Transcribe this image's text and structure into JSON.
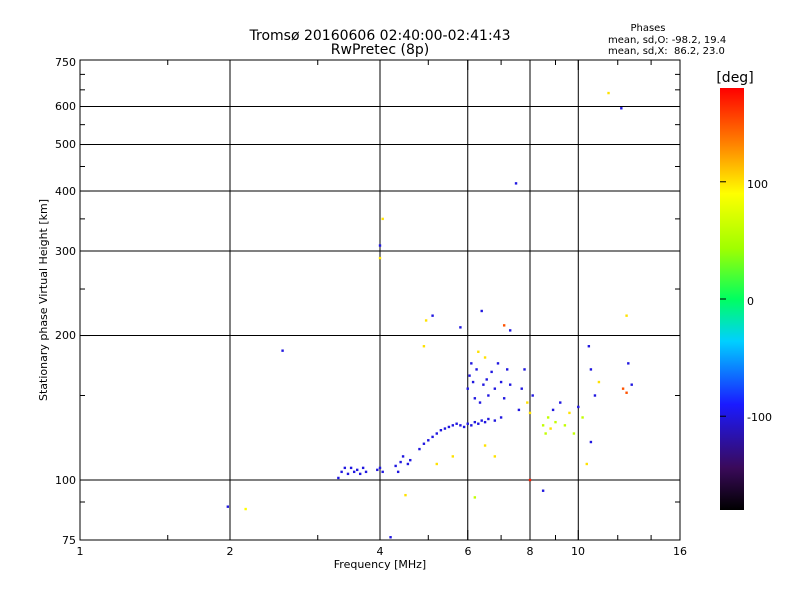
{
  "chart_data": {
    "type": "scatter",
    "title": "Tromsø 20160606 02:40:00-02:41:43",
    "subtitle": "RwPretec (8p)",
    "xlabel": "Frequency [MHz]",
    "ylabel": "Stationary phase Virtual Height [km]",
    "x_scale": "log",
    "y_scale": "log",
    "xlim": [
      1,
      16
    ],
    "ylim": [
      75,
      750
    ],
    "x_ticks": [
      "1",
      "2",
      "4",
      "6",
      "8",
      "10",
      "16"
    ],
    "y_ticks": [
      "75",
      "100",
      "200",
      "300",
      "400",
      "500",
      "600",
      "750"
    ],
    "grid": true,
    "stats": {
      "heading": "Phases",
      "line_o": "mean, sd,O: -98.2, 19.4",
      "line_x": "mean, sd,X:  86.2, 23.0"
    },
    "colorbar": {
      "label": "[deg]",
      "ticks": [
        "100",
        "0",
        "-100"
      ],
      "tick_values": [
        100,
        0,
        -100
      ],
      "range": [
        -180,
        180
      ],
      "colors": [
        "#000000",
        "#3a0a5a",
        "#1a1aff",
        "#00d0ff",
        "#00ff60",
        "#a0ff00",
        "#ffff00",
        "#ff8000",
        "#ff0000"
      ]
    },
    "points": [
      {
        "x": 1.98,
        "y": 88,
        "phase": -100
      },
      {
        "x": 2.15,
        "y": 87,
        "phase": 90
      },
      {
        "x": 2.55,
        "y": 186,
        "phase": -100
      },
      {
        "x": 3.3,
        "y": 101,
        "phase": -100
      },
      {
        "x": 3.35,
        "y": 104,
        "phase": -100
      },
      {
        "x": 3.4,
        "y": 106,
        "phase": -100
      },
      {
        "x": 3.45,
        "y": 103,
        "phase": -100
      },
      {
        "x": 3.5,
        "y": 106,
        "phase": -100
      },
      {
        "x": 3.55,
        "y": 104,
        "phase": -100
      },
      {
        "x": 3.6,
        "y": 105,
        "phase": -100
      },
      {
        "x": 3.65,
        "y": 103,
        "phase": -100
      },
      {
        "x": 3.7,
        "y": 106,
        "phase": -100
      },
      {
        "x": 3.75,
        "y": 104,
        "phase": -100
      },
      {
        "x": 3.95,
        "y": 105,
        "phase": -100
      },
      {
        "x": 4.0,
        "y": 106,
        "phase": -100
      },
      {
        "x": 4.05,
        "y": 104,
        "phase": -100
      },
      {
        "x": 4.0,
        "y": 308,
        "phase": -100
      },
      {
        "x": 4.0,
        "y": 290,
        "phase": 100
      },
      {
        "x": 4.05,
        "y": 350,
        "phase": 100
      },
      {
        "x": 4.2,
        "y": 76,
        "phase": -100
      },
      {
        "x": 4.3,
        "y": 107,
        "phase": -100
      },
      {
        "x": 4.35,
        "y": 104,
        "phase": -100
      },
      {
        "x": 4.4,
        "y": 109,
        "phase": -100
      },
      {
        "x": 4.45,
        "y": 112,
        "phase": -100
      },
      {
        "x": 4.5,
        "y": 93,
        "phase": 100
      },
      {
        "x": 4.55,
        "y": 108,
        "phase": -100
      },
      {
        "x": 4.6,
        "y": 110,
        "phase": -100
      },
      {
        "x": 4.8,
        "y": 116,
        "phase": -100
      },
      {
        "x": 4.9,
        "y": 119,
        "phase": -100
      },
      {
        "x": 5.0,
        "y": 121,
        "phase": -100
      },
      {
        "x": 5.1,
        "y": 123,
        "phase": -100
      },
      {
        "x": 5.2,
        "y": 125,
        "phase": -100
      },
      {
        "x": 5.3,
        "y": 127,
        "phase": -100
      },
      {
        "x": 5.4,
        "y": 128,
        "phase": -100
      },
      {
        "x": 5.5,
        "y": 129,
        "phase": -100
      },
      {
        "x": 5.6,
        "y": 130,
        "phase": -100
      },
      {
        "x": 5.7,
        "y": 131,
        "phase": -100
      },
      {
        "x": 5.8,
        "y": 130,
        "phase": -100
      },
      {
        "x": 5.9,
        "y": 129,
        "phase": -100
      },
      {
        "x": 6.0,
        "y": 131,
        "phase": -100
      },
      {
        "x": 6.1,
        "y": 130,
        "phase": -100
      },
      {
        "x": 6.2,
        "y": 132,
        "phase": -100
      },
      {
        "x": 6.3,
        "y": 131,
        "phase": -100
      },
      {
        "x": 6.4,
        "y": 133,
        "phase": -100
      },
      {
        "x": 6.5,
        "y": 132,
        "phase": -100
      },
      {
        "x": 6.6,
        "y": 134,
        "phase": -100
      },
      {
        "x": 6.8,
        "y": 133,
        "phase": -100
      },
      {
        "x": 7.0,
        "y": 135,
        "phase": -100
      },
      {
        "x": 4.9,
        "y": 190,
        "phase": 100
      },
      {
        "x": 4.95,
        "y": 215,
        "phase": 100
      },
      {
        "x": 5.1,
        "y": 220,
        "phase": -100
      },
      {
        "x": 5.2,
        "y": 108,
        "phase": 100
      },
      {
        "x": 5.6,
        "y": 112,
        "phase": 100
      },
      {
        "x": 5.8,
        "y": 208,
        "phase": -100
      },
      {
        "x": 6.0,
        "y": 155,
        "phase": -100
      },
      {
        "x": 6.05,
        "y": 165,
        "phase": -100
      },
      {
        "x": 6.1,
        "y": 175,
        "phase": -100
      },
      {
        "x": 6.15,
        "y": 160,
        "phase": -100
      },
      {
        "x": 6.2,
        "y": 148,
        "phase": -100
      },
      {
        "x": 6.25,
        "y": 170,
        "phase": -100
      },
      {
        "x": 6.3,
        "y": 185,
        "phase": 100
      },
      {
        "x": 6.35,
        "y": 145,
        "phase": -100
      },
      {
        "x": 6.4,
        "y": 225,
        "phase": -100
      },
      {
        "x": 6.45,
        "y": 158,
        "phase": -100
      },
      {
        "x": 6.5,
        "y": 180,
        "phase": 100
      },
      {
        "x": 6.55,
        "y": 162,
        "phase": -100
      },
      {
        "x": 6.6,
        "y": 150,
        "phase": -100
      },
      {
        "x": 6.7,
        "y": 168,
        "phase": -100
      },
      {
        "x": 6.8,
        "y": 155,
        "phase": -100
      },
      {
        "x": 6.9,
        "y": 175,
        "phase": -100
      },
      {
        "x": 7.0,
        "y": 160,
        "phase": -100
      },
      {
        "x": 7.1,
        "y": 148,
        "phase": -100
      },
      {
        "x": 7.2,
        "y": 170,
        "phase": -100
      },
      {
        "x": 7.3,
        "y": 158,
        "phase": -100
      },
      {
        "x": 7.1,
        "y": 210,
        "phase": 150
      },
      {
        "x": 7.3,
        "y": 205,
        "phase": -100
      },
      {
        "x": 6.2,
        "y": 92,
        "phase": 60
      },
      {
        "x": 6.5,
        "y": 118,
        "phase": 100
      },
      {
        "x": 6.8,
        "y": 112,
        "phase": 100
      },
      {
        "x": 7.5,
        "y": 415,
        "phase": -100
      },
      {
        "x": 7.6,
        "y": 140,
        "phase": -100
      },
      {
        "x": 7.7,
        "y": 155,
        "phase": -100
      },
      {
        "x": 7.8,
        "y": 170,
        "phase": -100
      },
      {
        "x": 7.9,
        "y": 145,
        "phase": 100
      },
      {
        "x": 8.0,
        "y": 138,
        "phase": 100
      },
      {
        "x": 8.1,
        "y": 150,
        "phase": -100
      },
      {
        "x": 8.0,
        "y": 100,
        "phase": 170
      },
      {
        "x": 8.5,
        "y": 95,
        "phase": -100
      },
      {
        "x": 8.5,
        "y": 130,
        "phase": 60
      },
      {
        "x": 8.6,
        "y": 125,
        "phase": 60
      },
      {
        "x": 8.7,
        "y": 135,
        "phase": 60
      },
      {
        "x": 8.8,
        "y": 128,
        "phase": 100
      },
      {
        "x": 8.9,
        "y": 140,
        "phase": -100
      },
      {
        "x": 9.0,
        "y": 132,
        "phase": 60
      },
      {
        "x": 9.2,
        "y": 145,
        "phase": -100
      },
      {
        "x": 9.4,
        "y": 130,
        "phase": 60
      },
      {
        "x": 9.6,
        "y": 138,
        "phase": 100
      },
      {
        "x": 9.8,
        "y": 125,
        "phase": 60
      },
      {
        "x": 10.0,
        "y": 142,
        "phase": -100
      },
      {
        "x": 10.2,
        "y": 135,
        "phase": 60
      },
      {
        "x": 10.5,
        "y": 190,
        "phase": -100
      },
      {
        "x": 10.6,
        "y": 170,
        "phase": -100
      },
      {
        "x": 10.8,
        "y": 150,
        "phase": -100
      },
      {
        "x": 11.0,
        "y": 160,
        "phase": 100
      },
      {
        "x": 10.4,
        "y": 108,
        "phase": 100
      },
      {
        "x": 10.6,
        "y": 120,
        "phase": -100
      },
      {
        "x": 11.5,
        "y": 640,
        "phase": 100
      },
      {
        "x": 12.2,
        "y": 595,
        "phase": -100
      },
      {
        "x": 12.5,
        "y": 220,
        "phase": 100
      },
      {
        "x": 12.6,
        "y": 175,
        "phase": -100
      },
      {
        "x": 12.3,
        "y": 155,
        "phase": 150
      },
      {
        "x": 12.5,
        "y": 152,
        "phase": 150
      },
      {
        "x": 12.8,
        "y": 158,
        "phase": -100
      }
    ]
  }
}
